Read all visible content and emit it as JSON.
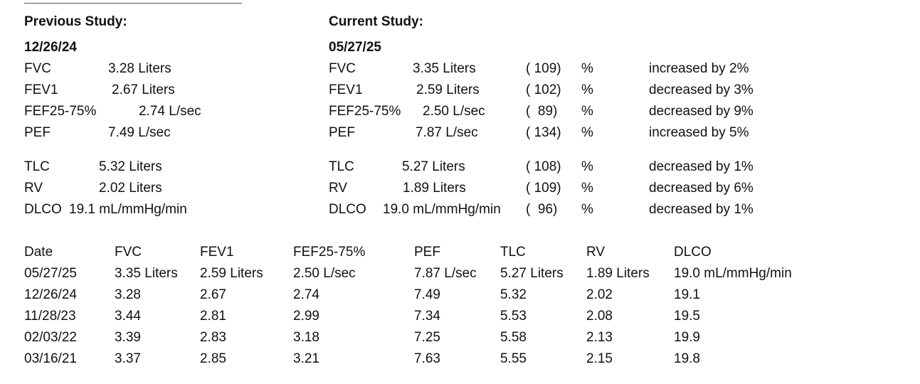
{
  "previous": {
    "heading": "Previous Study:",
    "date": "12/26/24",
    "rows": [
      {
        "label": "FVC",
        "value": "3.28 Liters"
      },
      {
        "label": "FEV1",
        "value": "2.67 Liters"
      },
      {
        "label": "FEF25-75%",
        "value": "2.74 L/sec"
      },
      {
        "label": "PEF",
        "value": "7.49 L/sec"
      },
      {
        "label": "TLC",
        "value": "5.32 Liters"
      },
      {
        "label": "RV",
        "value": "2.02 Liters"
      },
      {
        "label": "DLCO",
        "value": "19.1 mL/mmHg/min"
      }
    ]
  },
  "current": {
    "heading": "Current Study:",
    "date": "05/27/25",
    "rows": [
      {
        "label": "FVC",
        "value": "3.35 Liters",
        "pct": "( 109)",
        "unit": "%",
        "change": "increased by 2%"
      },
      {
        "label": "FEV1",
        "value": "2.59 Liters",
        "pct": "( 102)",
        "unit": "%",
        "change": "decreased by 3%"
      },
      {
        "label": "FEF25-75%",
        "value": "2.50 L/sec",
        "pct": "(  89)",
        "unit": "%",
        "change": "decreased by 9%"
      },
      {
        "label": "PEF",
        "value": "7.87 L/sec",
        "pct": "( 134)",
        "unit": "%",
        "change": "increased by 5%"
      },
      {
        "label": "TLC",
        "value": "5.27 Liters",
        "pct": "( 108)",
        "unit": "%",
        "change": "decreased by 1%"
      },
      {
        "label": "RV",
        "value": "1.89 Liters",
        "pct": "( 109)",
        "unit": "%",
        "change": "decreased by 6%"
      },
      {
        "label": "DLCO",
        "value": "19.0 mL/mmHg/min",
        "pct": "(  96)",
        "unit": "%",
        "change": "decreased by 1%"
      }
    ]
  },
  "history": {
    "headers": [
      "Date",
      "FVC",
      "FEV1",
      "FEF25-75%",
      "PEF",
      "TLC",
      "RV",
      "DLCO"
    ],
    "rows": [
      [
        "05/27/25",
        "3.35 Liters",
        "2.59 Liters",
        "2.50 L/sec",
        "7.87 L/sec",
        "5.27 Liters",
        "1.89 Liters",
        "19.0 mL/mmHg/min"
      ],
      [
        "12/26/24",
        "3.28",
        "2.67",
        "2.74",
        "7.49",
        "5.32",
        "2.02",
        "19.1"
      ],
      [
        "11/28/23",
        "3.44",
        "2.81",
        "2.99",
        "7.34",
        "5.53",
        "2.08",
        "19.5"
      ],
      [
        "02/03/22",
        "3.39",
        "2.83",
        "3.18",
        "7.25",
        "5.58",
        "2.13",
        "19.9"
      ],
      [
        "03/16/21",
        "3.37",
        "2.85",
        "3.21",
        "7.63",
        "5.55",
        "2.15",
        "19.8"
      ]
    ]
  }
}
